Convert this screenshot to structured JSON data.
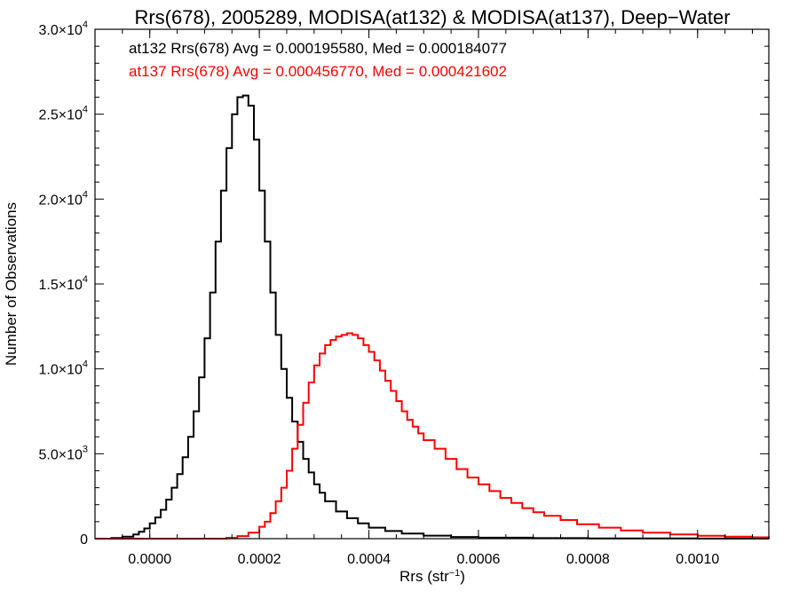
{
  "chart_data": {
    "type": "line",
    "title": "Rrs(678), 2005289, MODISA(at132) & MODISA(at137), Deep−Water",
    "xlabel": "Rrs (str",
    "xlabel_sup": "−1",
    "xlabel_close": ")",
    "ylabel": "Number of Observations",
    "xlim": [
      -0.0001,
      0.00113
    ],
    "ylim": [
      0,
      30000
    ],
    "x_ticks": [
      {
        "value": 0.0,
        "label": "0.0000"
      },
      {
        "value": 0.0002,
        "label": "0.0002"
      },
      {
        "value": 0.0004,
        "label": "0.0004"
      },
      {
        "value": 0.0006,
        "label": "0.0006"
      },
      {
        "value": 0.0008,
        "label": "0.0008"
      },
      {
        "value": 0.001,
        "label": "0.0010"
      }
    ],
    "y_ticks": [
      {
        "value": 0,
        "mant": "0",
        "exp": ""
      },
      {
        "value": 5000,
        "mant": "5.0×10",
        "exp": "3"
      },
      {
        "value": 10000,
        "mant": "1.0×10",
        "exp": "4"
      },
      {
        "value": 15000,
        "mant": "1.5×10",
        "exp": "4"
      },
      {
        "value": 20000,
        "mant": "2.0×10",
        "exp": "4"
      },
      {
        "value": 25000,
        "mant": "2.5×10",
        "exp": "4"
      },
      {
        "value": 30000,
        "mant": "3.0×10",
        "exp": "4"
      }
    ],
    "annotations": [
      {
        "text": "at132 Rrs(678) Avg = 0.000195580, Med = 0.000184077",
        "color": "#000000"
      },
      {
        "text": "at137 Rrs(678) Avg = 0.000456770, Med = 0.000421602",
        "color": "#ff0000"
      }
    ],
    "series": [
      {
        "color": "#000000",
        "step": true,
        "x": [
          -0.0001,
          -7e-05,
          -5e-05,
          -3e-05,
          -2e-05,
          -1e-05,
          0.0,
          1e-05,
          2e-05,
          3e-05,
          4e-05,
          5e-05,
          6e-05,
          7e-05,
          8e-05,
          9e-05,
          0.0001,
          0.00011,
          0.00012,
          0.00013,
          0.00014,
          0.00015,
          0.00016,
          0.00017,
          0.00018,
          0.00019,
          0.0002,
          0.00021,
          0.00022,
          0.00023,
          0.00024,
          0.00025,
          0.00026,
          0.00027,
          0.00028,
          0.00029,
          0.0003,
          0.00031,
          0.00032,
          0.00034,
          0.00036,
          0.00038,
          0.0004,
          0.00043,
          0.00046,
          0.0005,
          0.00055,
          0.0006,
          0.0007,
          0.0008,
          0.0009,
          0.001,
          0.00113
        ],
        "values": [
          0,
          40,
          120,
          250,
          400,
          600,
          900,
          1250,
          1700,
          2300,
          3000,
          3800,
          4800,
          6000,
          7500,
          9500,
          11800,
          14500,
          17500,
          20500,
          23000,
          25000,
          26000,
          26100,
          25500,
          23500,
          20500,
          17500,
          14500,
          12000,
          10000,
          8300,
          6900,
          5700,
          4700,
          3900,
          3200,
          2700,
          2200,
          1600,
          1200,
          900,
          650,
          450,
          300,
          180,
          100,
          60,
          30,
          15,
          8,
          4,
          0
        ]
      },
      {
        "color": "#ff0000",
        "step": true,
        "x": [
          -0.0001,
          0.0001,
          0.00014,
          0.00016,
          0.00018,
          0.0002,
          0.00021,
          0.00022,
          0.00023,
          0.00024,
          0.00025,
          0.00026,
          0.00027,
          0.00028,
          0.00029,
          0.0003,
          0.00031,
          0.00032,
          0.00033,
          0.00034,
          0.00035,
          0.00036,
          0.00037,
          0.00038,
          0.00039,
          0.0004,
          0.00041,
          0.00042,
          0.00043,
          0.00044,
          0.00045,
          0.00046,
          0.00047,
          0.00048,
          0.00049,
          0.0005,
          0.00052,
          0.00054,
          0.00056,
          0.00058,
          0.0006,
          0.00062,
          0.00064,
          0.00066,
          0.00068,
          0.0007,
          0.00072,
          0.00075,
          0.00078,
          0.00082,
          0.00086,
          0.0009,
          0.00095,
          0.001,
          0.00105,
          0.0011,
          0.00113
        ],
        "values": [
          0,
          0,
          50,
          150,
          350,
          700,
          1000,
          1500,
          2200,
          3000,
          4000,
          5300,
          6700,
          8000,
          9200,
          10200,
          10900,
          11400,
          11700,
          11900,
          12000,
          12100,
          12000,
          11800,
          11400,
          11000,
          10500,
          9900,
          9300,
          8700,
          8100,
          7500,
          7000,
          6600,
          6200,
          5800,
          5300,
          4700,
          4100,
          3600,
          3200,
          2800,
          2400,
          2100,
          1800,
          1550,
          1350,
          1100,
          850,
          650,
          480,
          350,
          250,
          170,
          120,
          80,
          50
        ]
      }
    ]
  }
}
